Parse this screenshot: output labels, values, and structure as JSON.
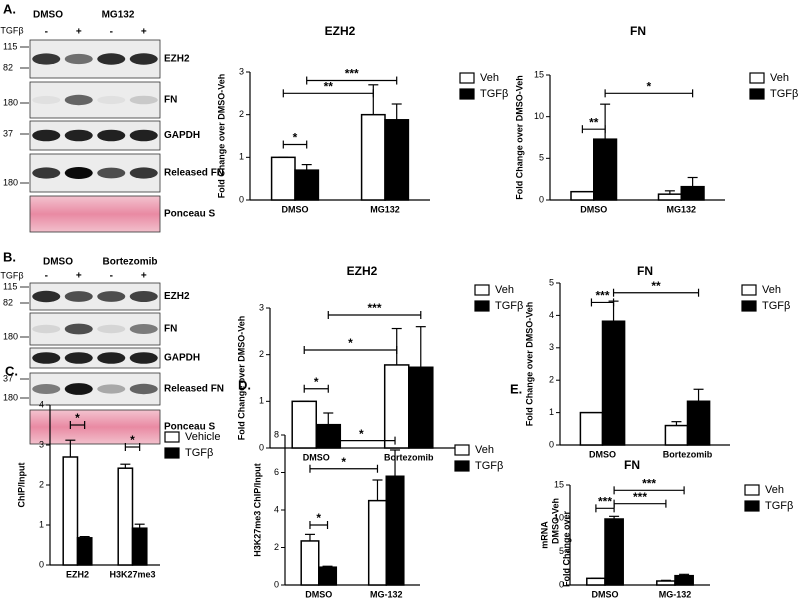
{
  "blots": [
    {
      "panel_label": "A.",
      "treatments": [
        "DMSO",
        "MG132"
      ],
      "treatment_label": "TGFβ",
      "signs": [
        "-",
        "+",
        "-",
        "+"
      ],
      "rows": [
        {
          "name": "EZH2",
          "markers": [
            "115",
            "82"
          ]
        },
        {
          "name": "FN",
          "markers": [
            "180"
          ]
        },
        {
          "name": "GAPDH",
          "markers": [
            "37"
          ]
        },
        {
          "name": "Released FN",
          "markers": [
            "180"
          ]
        },
        {
          "name": "Ponceau S",
          "markers": []
        }
      ]
    },
    {
      "panel_label": "B.",
      "treatments": [
        "DMSO",
        "Bortezomib"
      ],
      "treatment_label": "TGFβ",
      "signs": [
        "-",
        "+",
        "-",
        "+"
      ],
      "rows": [
        {
          "name": "EZH2",
          "markers": [
            "115",
            "82"
          ]
        },
        {
          "name": "FN",
          "markers": [
            "180"
          ]
        },
        {
          "name": "GAPDH",
          "markers": [
            "37"
          ]
        },
        {
          "name": "Released FN",
          "markers": [
            "180"
          ]
        },
        {
          "name": "Ponceau S",
          "markers": []
        }
      ]
    }
  ],
  "chart_data": [
    {
      "type": "bar",
      "title": "EZH2",
      "y_label": [
        "Fold Change over  DMSO-Veh"
      ],
      "categories": [
        "DMSO",
        "MG132"
      ],
      "series": [
        {
          "name": "Veh",
          "color": "#ffffff",
          "values": [
            1,
            2.0
          ],
          "errors": [
            0,
            0.7
          ]
        },
        {
          "name": "TGFβ",
          "color": "#000000",
          "values": [
            0.7,
            1.88
          ],
          "errors": [
            0.13,
            0.37
          ]
        }
      ],
      "ylim": [
        0,
        3
      ],
      "yticks": [
        0,
        1,
        2,
        3
      ],
      "annotations": [
        {
          "text": "*",
          "y": 1.3,
          "bars": [
            [
              0,
              0
            ],
            [
              0,
              1
            ]
          ]
        },
        {
          "text": "**",
          "y": 2.5,
          "bars": [
            [
              0,
              0
            ],
            [
              1,
              0
            ]
          ]
        },
        {
          "text": "***",
          "y": 2.8,
          "bars": [
            [
              0,
              1
            ],
            [
              1,
              1
            ]
          ]
        }
      ]
    },
    {
      "type": "bar",
      "title": "FN",
      "y_label": [
        "Fold Change over  DMSO-Veh"
      ],
      "categories": [
        "DMSO",
        "MG132"
      ],
      "series": [
        {
          "name": "Veh",
          "color": "#ffffff",
          "values": [
            1,
            0.7
          ],
          "errors": [
            0,
            0.4
          ]
        },
        {
          "name": "TGFβ",
          "color": "#000000",
          "values": [
            7.3,
            1.6
          ],
          "errors": [
            4.2,
            1.1
          ]
        }
      ],
      "ylim": [
        0,
        15
      ],
      "yticks": [
        0,
        5,
        10,
        15
      ],
      "annotations": [
        {
          "text": "**",
          "y": 8.5,
          "bars": [
            [
              0,
              0
            ],
            [
              0,
              1
            ]
          ]
        },
        {
          "text": "*",
          "y": 12.8,
          "bars": [
            [
              0,
              1
            ],
            [
              1,
              1
            ]
          ]
        }
      ]
    },
    {
      "type": "bar",
      "title": "EZH2",
      "y_label": [
        "Fold Change over  DMSO-Veh"
      ],
      "categories": [
        "DMSO",
        "Bortezomib"
      ],
      "series": [
        {
          "name": "Veh",
          "color": "#ffffff",
          "values": [
            1,
            1.78
          ],
          "errors": [
            0,
            0.78
          ]
        },
        {
          "name": "TGFβ",
          "color": "#000000",
          "values": [
            0.5,
            1.73
          ],
          "errors": [
            0.25,
            0.87
          ]
        }
      ],
      "ylim": [
        0,
        3
      ],
      "yticks": [
        0,
        1,
        2,
        3
      ],
      "annotations": [
        {
          "text": "*",
          "y": 1.27,
          "bars": [
            [
              0,
              0
            ],
            [
              0,
              1
            ]
          ]
        },
        {
          "text": "*",
          "y": 2.1,
          "bars": [
            [
              0,
              0
            ],
            [
              1,
              0
            ]
          ]
        },
        {
          "text": "***",
          "y": 2.85,
          "bars": [
            [
              0,
              1
            ],
            [
              1,
              1
            ]
          ]
        }
      ]
    },
    {
      "type": "bar",
      "title": "FN",
      "y_label": [
        "Fold Change over  DMSO-Veh"
      ],
      "categories": [
        "DMSO",
        "Bortezomib"
      ],
      "series": [
        {
          "name": "Veh",
          "color": "#ffffff",
          "values": [
            1,
            0.6
          ],
          "errors": [
            0,
            0.12
          ]
        },
        {
          "name": "TGFβ",
          "color": "#000000",
          "values": [
            3.82,
            1.35
          ],
          "errors": [
            0.62,
            0.37
          ]
        }
      ],
      "ylim": [
        0,
        5
      ],
      "yticks": [
        0,
        1,
        2,
        3,
        4,
        5
      ],
      "annotations": [
        {
          "text": "***",
          "y": 4.4,
          "bars": [
            [
              0,
              0
            ],
            [
              0,
              1
            ]
          ]
        },
        {
          "text": "**",
          "y": 4.7,
          "bars": [
            [
              0,
              1
            ],
            [
              1,
              1
            ]
          ]
        }
      ]
    },
    {
      "type": "bar",
      "panel_label": "C.",
      "y_label": [
        "ChIP/Input"
      ],
      "categories": [
        "EZH2",
        "H3K27me3"
      ],
      "series": [
        {
          "name": "Vehicle",
          "color": "#ffffff",
          "values": [
            2.7,
            2.42
          ],
          "errors": [
            0.42,
            0.1
          ]
        },
        {
          "name": "TGFβ",
          "color": "#000000",
          "values": [
            0.68,
            0.92
          ],
          "errors": [
            0.03,
            0.1
          ]
        }
      ],
      "ylim": [
        0,
        4
      ],
      "yticks": [
        0,
        1,
        2,
        3,
        4
      ],
      "annotations": [
        {
          "text": "*",
          "y": 3.5,
          "bars": [
            [
              0,
              0
            ],
            [
              0,
              1
            ]
          ]
        },
        {
          "text": "*",
          "y": 2.95,
          "bars": [
            [
              1,
              0
            ],
            [
              1,
              1
            ]
          ]
        }
      ]
    },
    {
      "type": "bar",
      "panel_label": "D.",
      "y_label": [
        "H3K27me3 ChIP/Input"
      ],
      "categories": [
        "DMSO",
        "MG-132"
      ],
      "series": [
        {
          "name": "Veh",
          "color": "#ffffff",
          "values": [
            2.35,
            4.5
          ],
          "errors": [
            0.35,
            1.1
          ]
        },
        {
          "name": "TGFβ",
          "color": "#000000",
          "values": [
            0.95,
            5.8
          ],
          "errors": [
            0.05,
            1.4
          ]
        }
      ],
      "ylim": [
        0,
        8
      ],
      "yticks": [
        0,
        2,
        4,
        6,
        8
      ],
      "annotations": [
        {
          "text": "*",
          "y": 3.2,
          "bars": [
            [
              0,
              0
            ],
            [
              0,
              1
            ]
          ]
        },
        {
          "text": "*",
          "y": 6.2,
          "bars": [
            [
              0,
              0
            ],
            [
              1,
              0
            ]
          ]
        },
        {
          "text": "*",
          "y": 7.7,
          "bars": [
            [
              0,
              1
            ],
            [
              1,
              1
            ]
          ]
        }
      ]
    },
    {
      "type": "bar",
      "panel_label": "E.",
      "title": "FN",
      "y_label": [
        "mRNA",
        "DMSO-Veh",
        "Fold Change over"
      ],
      "categories": [
        "DMSO",
        "MG-132"
      ],
      "series": [
        {
          "name": "Veh",
          "color": "#ffffff",
          "values": [
            1,
            0.6
          ],
          "errors": [
            0,
            0.1
          ]
        },
        {
          "name": "TGFβ",
          "color": "#000000",
          "values": [
            9.9,
            1.4
          ],
          "errors": [
            0.4,
            0.2
          ]
        }
      ],
      "ylim": [
        0,
        15
      ],
      "yticks": [
        0,
        5,
        10,
        15
      ],
      "annotations": [
        {
          "text": "***",
          "y": 11.5,
          "bars": [
            [
              0,
              0
            ],
            [
              0,
              1
            ]
          ]
        },
        {
          "text": "***",
          "y": 12.2,
          "bars": [
            [
              0,
              1
            ],
            [
              1,
              0
            ]
          ]
        },
        {
          "text": "***",
          "y": 14.2,
          "bars": [
            [
              0,
              1
            ],
            [
              1,
              1
            ]
          ]
        }
      ]
    }
  ]
}
